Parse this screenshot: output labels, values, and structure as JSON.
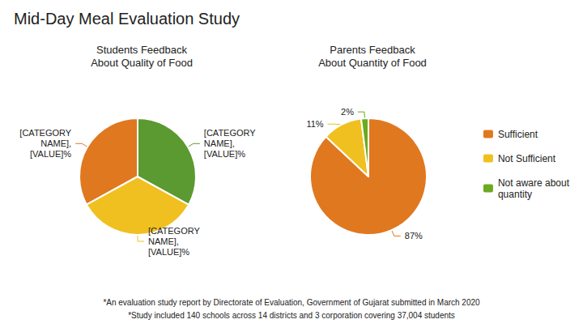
{
  "title": "Mid-Day Meal Evaluation Study",
  "annotations": [
    "*An evaluation study report by Directorate of Evaluation, Government of Gujarat submitted in March 2020",
    "*Study included 140 schools across 14 districts and 3 corporation covering 37,004 students"
  ],
  "chart_data": [
    {
      "type": "pie",
      "title": "Students Feedback\nAbout Quality of Food",
      "values": [
        33,
        34,
        33
      ],
      "colors": [
        "#e07820",
        "#f0c020",
        "#5a9a30"
      ],
      "annotations": [
        "[CATEGORY\nNAME],\n[VALUE]%",
        "[CATEGORY\nNAME],\n[VALUE]%",
        "[CATEGORY\nNAME],\n[VALUE]%"
      ]
    },
    {
      "type": "pie",
      "title": "Parents Feedback\nAbout Quantity of Food",
      "categories": [
        "Sufficient",
        "Not Sufficient",
        "Not aware about\nquantity"
      ],
      "values": [
        87,
        11,
        2
      ],
      "value_labels": [
        "87%",
        "11%",
        "2%"
      ],
      "colors": [
        "#e07820",
        "#f0c020",
        "#6aaa20"
      ],
      "data_labels": true,
      "legend": "right"
    }
  ]
}
